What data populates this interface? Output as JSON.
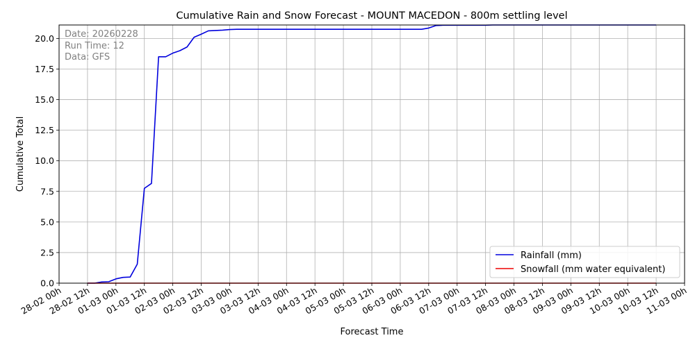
{
  "chart_data": {
    "type": "line",
    "title": "Cumulative Rain and Snow Forecast - MOUNT MACEDON - 800m settling level",
    "xlabel": "Forecast Time",
    "ylabel": "Cumulative Total",
    "info": [
      "Date: 20260228",
      "Run Time: 12",
      "Data: GFS"
    ],
    "grid": true,
    "legend_position": "lower-right",
    "xlim": [
      "28-02 00h",
      "11-03 00h"
    ],
    "ylim": [
      0,
      21.1
    ],
    "x_ticks": [
      "28-02 00h",
      "28-02 12h",
      "01-03 00h",
      "01-03 12h",
      "02-03 00h",
      "02-03 12h",
      "03-03 00h",
      "03-03 12h",
      "04-03 00h",
      "04-03 12h",
      "05-03 00h",
      "05-03 12h",
      "06-03 00h",
      "06-03 12h",
      "07-03 00h",
      "07-03 12h",
      "08-03 00h",
      "08-03 12h",
      "09-03 00h",
      "09-03 12h",
      "10-03 00h",
      "10-03 12h",
      "11-03 00h"
    ],
    "y_ticks": [
      "0.0",
      "2.5",
      "5.0",
      "7.5",
      "10.0",
      "12.5",
      "15.0",
      "17.5",
      "20.0"
    ],
    "series": [
      {
        "name": "Rainfall (mm)",
        "color": "#0000dd",
        "x": [
          "28-02 12h",
          "28-02 15h",
          "28-02 18h",
          "28-02 21h",
          "01-03 00h",
          "01-03 03h",
          "01-03 06h",
          "01-03 09h",
          "01-03 12h",
          "01-03 15h",
          "01-03 18h",
          "01-03 21h",
          "02-03 00h",
          "02-03 03h",
          "02-03 06h",
          "02-03 09h",
          "02-03 12h",
          "02-03 15h",
          "02-03 18h",
          "02-03 21h",
          "03-03 00h",
          "03-03 03h",
          "03-03 06h",
          "03-03 09h",
          "03-03 12h",
          "03-03 15h",
          "03-03 18h",
          "03-03 21h",
          "04-03 00h",
          "04-03 03h",
          "04-03 06h",
          "04-03 09h",
          "04-03 12h",
          "04-03 15h",
          "04-03 18h",
          "04-03 21h",
          "05-03 00h",
          "05-03 03h",
          "05-03 06h",
          "05-03 09h",
          "05-03 12h",
          "05-03 15h",
          "05-03 18h",
          "05-03 21h",
          "06-03 00h",
          "06-03 03h",
          "06-03 06h",
          "06-03 09h",
          "06-03 12h",
          "06-03 15h",
          "06-03 18h",
          "06-03 21h",
          "07-03 00h",
          "07-03 03h",
          "07-03 06h",
          "07-03 09h",
          "07-03 12h",
          "07-03 15h",
          "07-03 18h",
          "07-03 21h",
          "08-03 00h",
          "08-03 06h",
          "08-03 12h",
          "08-03 18h",
          "09-03 00h",
          "09-03 06h",
          "09-03 12h",
          "09-03 18h",
          "10-03 00h",
          "10-03 06h",
          "10-03 12h"
        ],
        "y": [
          0,
          0,
          0.1,
          0.12,
          0.35,
          0.47,
          0.5,
          1.55,
          7.75,
          8.15,
          18.5,
          18.5,
          18.8,
          19.0,
          19.3,
          20.1,
          20.35,
          20.62,
          20.65,
          20.68,
          20.73,
          20.75,
          20.75,
          20.75,
          20.75,
          20.75,
          20.75,
          20.75,
          20.75,
          20.75,
          20.75,
          20.75,
          20.75,
          20.75,
          20.75,
          20.75,
          20.75,
          20.75,
          20.75,
          20.75,
          20.75,
          20.75,
          20.75,
          20.75,
          20.75,
          20.75,
          20.75,
          20.75,
          20.85,
          21.05,
          21.08,
          21.08,
          21.08,
          21.08,
          21.08,
          21.08,
          21.08,
          21.1,
          21.1,
          21.1,
          21.1,
          21.1,
          21.1,
          21.1,
          21.1,
          21.1,
          21.1,
          21.1,
          21.1,
          21.1,
          21.1
        ]
      },
      {
        "name": "Snowfall (mm water equivalent)",
        "color": "#ee0000",
        "x": [
          "28-02 12h",
          "10-03 12h"
        ],
        "y": [
          0,
          0
        ]
      }
    ]
  }
}
